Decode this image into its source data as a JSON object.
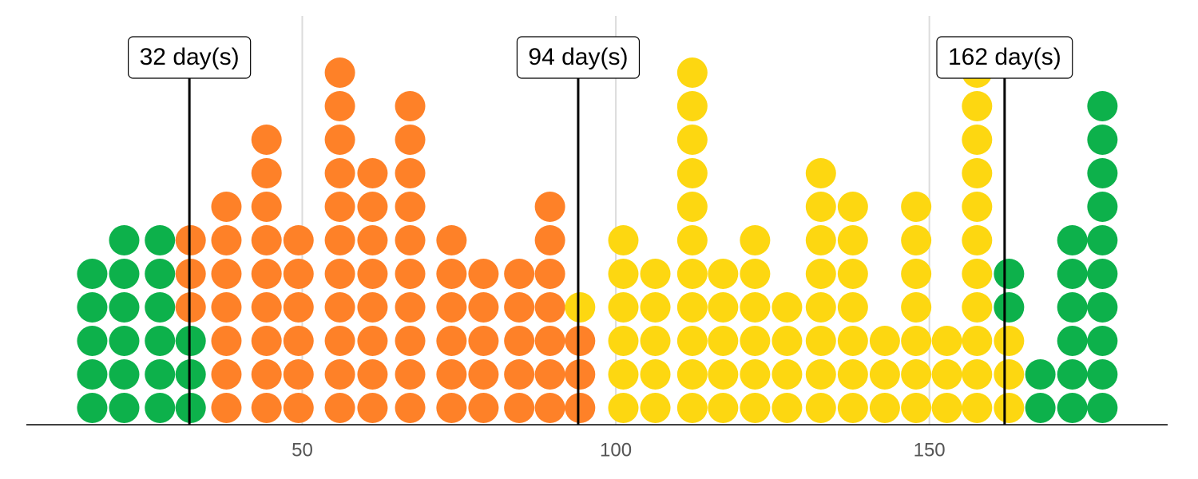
{
  "chart_data": {
    "type": "dot",
    "x": [
      16.5,
      21.6,
      27.3,
      32.2,
      37.9,
      44.3,
      49.4,
      56.0,
      61.2,
      67.2,
      73.8,
      78.9,
      84.6,
      89.5,
      94.3,
      101.2,
      106.3,
      112.2,
      117.1,
      122.2,
      127.3,
      132.7,
      137.8,
      142.9,
      147.9,
      152.8,
      157.6,
      162.7,
      167.7,
      172.8,
      177.6
    ],
    "series": [
      {
        "color": "#0db14b",
        "values": [
          5,
          6,
          6,
          3,
          0,
          0,
          0,
          0,
          0,
          0,
          0,
          0,
          0,
          0,
          0,
          0,
          0,
          0,
          0,
          0,
          0,
          0,
          0,
          0,
          0,
          0,
          0,
          0,
          0,
          0,
          0
        ]
      },
      {
        "color": "#fe8128",
        "values": [
          0,
          0,
          0,
          3,
          7,
          9,
          6,
          11,
          8,
          10,
          6,
          5,
          5,
          7,
          3,
          0,
          0,
          0,
          0,
          0,
          0,
          0,
          0,
          0,
          0,
          0,
          0,
          0,
          0,
          0,
          0
        ]
      },
      {
        "color": "#fdd711",
        "values": [
          0,
          0,
          0,
          0,
          0,
          0,
          0,
          0,
          0,
          0,
          0,
          0,
          0,
          0,
          1,
          6,
          5,
          11,
          5,
          6,
          4,
          8,
          7,
          3,
          7,
          3,
          11,
          3,
          0,
          0,
          0
        ]
      },
      {
        "color": "#0db14b",
        "values": [
          0,
          0,
          0,
          0,
          0,
          0,
          0,
          0,
          0,
          0,
          0,
          0,
          0,
          0,
          0,
          0,
          0,
          0,
          0,
          0,
          0,
          0,
          0,
          0,
          0,
          0,
          0,
          2,
          2,
          6,
          10
        ]
      }
    ],
    "xlim": [
      6,
      188
    ],
    "xticks": [
      50,
      100,
      150
    ],
    "grid": true,
    "markers": [
      {
        "value": 32,
        "label": "32 day(s)"
      },
      {
        "value": 94,
        "label": "94 day(s)"
      },
      {
        "value": 162,
        "label": "162 day(s)"
      }
    ]
  }
}
